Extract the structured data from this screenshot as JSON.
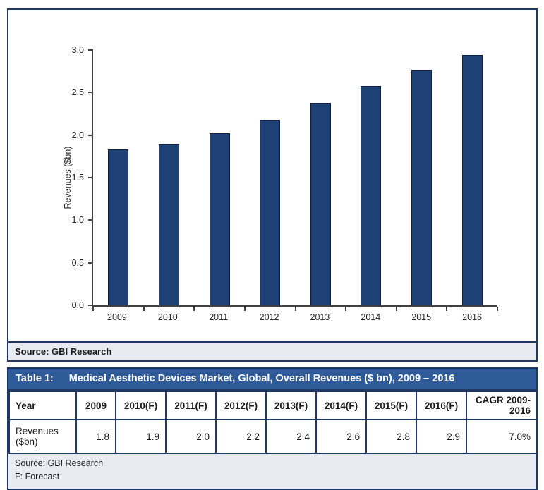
{
  "figure": {
    "source_label": "Source: GBI Research"
  },
  "chart_data": {
    "type": "bar",
    "title": "",
    "categories": [
      "2009",
      "2010",
      "2011",
      "2012",
      "2013",
      "2014",
      "2015",
      "2016"
    ],
    "values": [
      1.83,
      1.9,
      2.02,
      2.18,
      2.38,
      2.58,
      2.77,
      2.94
    ],
    "xlabel": "",
    "ylabel": "Revenues ($bn)",
    "ylim": [
      0,
      3.0
    ],
    "yticks": [
      0.0,
      0.5,
      1.0,
      1.5,
      2.0,
      2.5,
      3.0
    ],
    "grid": false,
    "legend_position": "none",
    "bar_color": "#1e4075"
  },
  "table": {
    "title_label": "Table 1:",
    "title_text": "Medical Aesthetic Devices Market, Global, Overall Revenues ($ bn), 2009 – 2016",
    "header_row": [
      "Year",
      "2009",
      "2010(F)",
      "2011(F)",
      "2012(F)",
      "2013(F)",
      "2014(F)",
      "2015(F)",
      "2016(F)",
      "CAGR 2009-2016"
    ],
    "data_row": [
      "Revenues ($bn)",
      "1.8",
      "1.9",
      "2.0",
      "2.2",
      "2.4",
      "2.6",
      "2.8",
      "2.9",
      "7.0%"
    ],
    "footer_lines": [
      "Source: GBI Research",
      "F: Forecast"
    ]
  },
  "colors": {
    "bar_fill": "#1e4075",
    "bar_border": "#131f3a",
    "box_border": "#1f3864",
    "table_header_bg": "#2f5b99",
    "strip_bg": "#e8ecf2",
    "axis_line": "#404040"
  }
}
